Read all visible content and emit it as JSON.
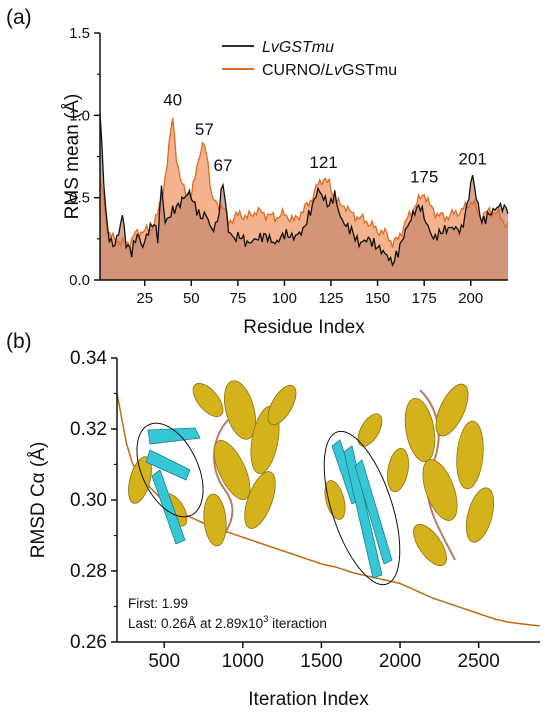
{
  "panel_a": {
    "letter": "(a)",
    "legend": {
      "s1_part1": "LvGSTmu",
      "s1_part2": "",
      "s2_part1": "CURNO/",
      "s2_part2": "Lv",
      "s2_part3": "GSTmu"
    },
    "colors": {
      "black_line": "#111111",
      "orange_line": "#e06a20",
      "orange_fill": "#f2a57a",
      "overlap_fill": "#c98a70"
    }
  },
  "panel_b": {
    "letter": "(b)",
    "annotation_line1": "First: 1.99",
    "annotation_line2_a": "Last: 0.26Å at 2.89x10",
    "annotation_line2_sup": "3",
    "annotation_line2_b": " iteraction",
    "colors": {
      "curve": "#c06a10",
      "helix": "#d4b21c",
      "sheet": "#36c7d6",
      "loop": "#b97a6a"
    }
  },
  "chart_data": [
    {
      "type": "area",
      "xlabel": "Residue Index",
      "ylabel": "RMS mean (Å)",
      "xlim": [
        1,
        220
      ],
      "ylim": [
        0,
        1.5
      ],
      "xticks": [
        25,
        50,
        75,
        100,
        125,
        150,
        175,
        200
      ],
      "yticks": [
        0.0,
        0.5,
        1.0,
        1.5
      ],
      "ytick_labels": [
        "0.0",
        "0.5",
        "1.0",
        "1.5"
      ],
      "legend_position": "top-right",
      "peak_labels": [
        {
          "text": "40",
          "x": 40,
          "y": 1.0
        },
        {
          "text": "57",
          "x": 57,
          "y": 0.82
        },
        {
          "text": "67",
          "x": 67,
          "y": 0.6
        },
        {
          "text": "121",
          "x": 121,
          "y": 0.62
        },
        {
          "text": "175",
          "x": 175,
          "y": 0.53
        },
        {
          "text": "201",
          "x": 201,
          "y": 0.64
        }
      ],
      "series": [
        {
          "name": "LvGSTmu",
          "keypoints": [
            [
              1,
              1.02
            ],
            [
              3,
              0.6
            ],
            [
              5,
              0.3
            ],
            [
              8,
              0.2
            ],
            [
              11,
              0.28
            ],
            [
              13,
              0.4
            ],
            [
              15,
              0.22
            ],
            [
              18,
              0.17
            ],
            [
              21,
              0.28
            ],
            [
              24,
              0.2
            ],
            [
              27,
              0.3
            ],
            [
              30,
              0.35
            ],
            [
              32,
              0.25
            ],
            [
              34,
              0.57
            ],
            [
              36,
              0.35
            ],
            [
              38,
              0.38
            ],
            [
              40,
              0.42
            ],
            [
              43,
              0.45
            ],
            [
              46,
              0.5
            ],
            [
              49,
              0.53
            ],
            [
              52,
              0.45
            ],
            [
              55,
              0.38
            ],
            [
              58,
              0.4
            ],
            [
              61,
              0.3
            ],
            [
              64,
              0.35
            ],
            [
              67,
              0.6
            ],
            [
              70,
              0.3
            ],
            [
              73,
              0.25
            ],
            [
              76,
              0.27
            ],
            [
              80,
              0.22
            ],
            [
              85,
              0.25
            ],
            [
              90,
              0.27
            ],
            [
              95,
              0.22
            ],
            [
              100,
              0.28
            ],
            [
              105,
              0.26
            ],
            [
              110,
              0.3
            ],
            [
              115,
              0.45
            ],
            [
              118,
              0.55
            ],
            [
              121,
              0.5
            ],
            [
              124,
              0.45
            ],
            [
              127,
              0.52
            ],
            [
              130,
              0.38
            ],
            [
              133,
              0.33
            ],
            [
              136,
              0.3
            ],
            [
              140,
              0.22
            ],
            [
              145,
              0.25
            ],
            [
              150,
              0.2
            ],
            [
              155,
              0.15
            ],
            [
              158,
              0.1
            ],
            [
              161,
              0.17
            ],
            [
              165,
              0.3
            ],
            [
              170,
              0.42
            ],
            [
              173,
              0.45
            ],
            [
              176,
              0.35
            ],
            [
              180,
              0.25
            ],
            [
              185,
              0.3
            ],
            [
              190,
              0.32
            ],
            [
              195,
              0.3
            ],
            [
              198,
              0.45
            ],
            [
              201,
              0.64
            ],
            [
              203,
              0.5
            ],
            [
              206,
              0.35
            ],
            [
              210,
              0.4
            ],
            [
              215,
              0.45
            ],
            [
              220,
              0.43
            ]
          ]
        },
        {
          "name": "CURNO/LvGSTmu",
          "keypoints": [
            [
              1,
              0.6
            ],
            [
              3,
              0.5
            ],
            [
              5,
              0.3
            ],
            [
              8,
              0.25
            ],
            [
              11,
              0.24
            ],
            [
              14,
              0.22
            ],
            [
              17,
              0.23
            ],
            [
              20,
              0.28
            ],
            [
              24,
              0.3
            ],
            [
              28,
              0.3
            ],
            [
              32,
              0.4
            ],
            [
              35,
              0.55
            ],
            [
              37,
              0.7
            ],
            [
              40,
              1.0
            ],
            [
              42,
              0.75
            ],
            [
              44,
              0.6
            ],
            [
              47,
              0.55
            ],
            [
              50,
              0.5
            ],
            [
              53,
              0.7
            ],
            [
              55,
              0.78
            ],
            [
              57,
              0.82
            ],
            [
              59,
              0.72
            ],
            [
              61,
              0.5
            ],
            [
              64,
              0.45
            ],
            [
              67,
              0.45
            ],
            [
              70,
              0.35
            ],
            [
              73,
              0.38
            ],
            [
              76,
              0.4
            ],
            [
              80,
              0.38
            ],
            [
              85,
              0.42
            ],
            [
              90,
              0.4
            ],
            [
              95,
              0.38
            ],
            [
              100,
              0.4
            ],
            [
              105,
              0.36
            ],
            [
              110,
              0.42
            ],
            [
              115,
              0.5
            ],
            [
              118,
              0.58
            ],
            [
              121,
              0.62
            ],
            [
              124,
              0.58
            ],
            [
              127,
              0.5
            ],
            [
              130,
              0.45
            ],
            [
              133,
              0.45
            ],
            [
              136,
              0.4
            ],
            [
              140,
              0.38
            ],
            [
              145,
              0.35
            ],
            [
              150,
              0.3
            ],
            [
              155,
              0.28
            ],
            [
              158,
              0.22
            ],
            [
              161,
              0.25
            ],
            [
              165,
              0.35
            ],
            [
              170,
              0.45
            ],
            [
              175,
              0.53
            ],
            [
              178,
              0.45
            ],
            [
              182,
              0.4
            ],
            [
              186,
              0.38
            ],
            [
              190,
              0.4
            ],
            [
              195,
              0.42
            ],
            [
              198,
              0.45
            ],
            [
              201,
              0.48
            ],
            [
              205,
              0.38
            ],
            [
              210,
              0.42
            ],
            [
              215,
              0.4
            ],
            [
              220,
              0.32
            ]
          ]
        }
      ]
    },
    {
      "type": "line",
      "xlabel": "Iteration Index",
      "ylabel": "RMSD Cα (Å)",
      "xlim": [
        200,
        2890
      ],
      "ylim": [
        0.26,
        0.34
      ],
      "xticks": [
        500,
        1000,
        1500,
        2000,
        2500
      ],
      "yticks": [
        0.26,
        0.28,
        0.3,
        0.32,
        0.34
      ],
      "ytick_labels": [
        "0.26",
        "0.28",
        "0.30",
        "0.32",
        "0.34"
      ],
      "series": [
        {
          "name": "",
          "keypoints": [
            [
              200,
              0.33
            ],
            [
              260,
              0.316
            ],
            [
              300,
              0.31
            ],
            [
              400,
              0.304
            ],
            [
              500,
              0.2995
            ],
            [
              600,
              0.2965
            ],
            [
              700,
              0.2945
            ],
            [
              800,
              0.2925
            ],
            [
              900,
              0.291
            ],
            [
              1000,
              0.2895
            ],
            [
              1100,
              0.288
            ],
            [
              1200,
              0.2865
            ],
            [
              1300,
              0.285
            ],
            [
              1400,
              0.2835
            ],
            [
              1500,
              0.282
            ],
            [
              1600,
              0.281
            ],
            [
              1700,
              0.2795
            ],
            [
              1800,
              0.2785
            ],
            [
              1900,
              0.2775
            ],
            [
              2000,
              0.2765
            ],
            [
              2100,
              0.2745
            ],
            [
              2200,
              0.2725
            ],
            [
              2300,
              0.271
            ],
            [
              2400,
              0.2695
            ],
            [
              2500,
              0.268
            ],
            [
              2600,
              0.2665
            ],
            [
              2700,
              0.2655
            ],
            [
              2890,
              0.2645
            ]
          ]
        }
      ]
    }
  ]
}
